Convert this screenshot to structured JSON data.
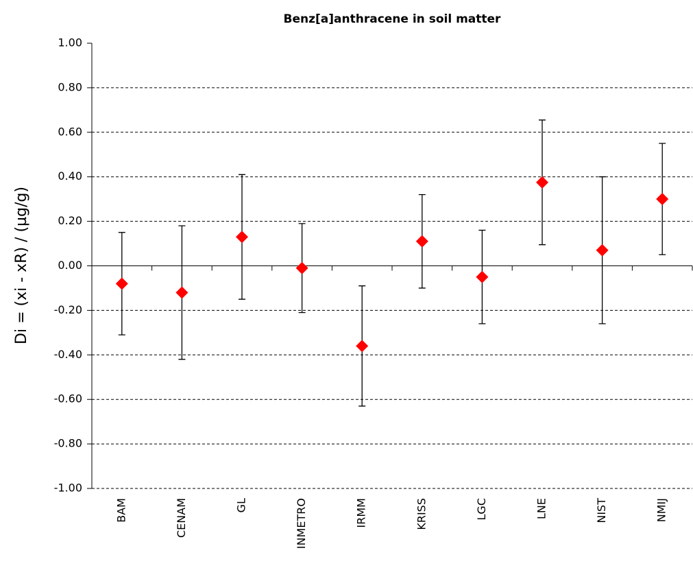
{
  "chart_data": {
    "type": "scatter_errorbar",
    "title": "Benz[a]anthracene in soil matter",
    "y_label": "Di = (xi - xR) / (µg/g)",
    "categories": [
      "BAM",
      "CENAM",
      "GL",
      "INMETRO",
      "IRMM",
      "KRISS",
      "LGC",
      "LNE",
      "NIST",
      "NMIJ"
    ],
    "series": [
      {
        "color": "#ff0000",
        "values": [
          -0.08,
          -0.12,
          0.13,
          -0.01,
          -0.36,
          0.11,
          -0.05,
          0.375,
          0.07,
          0.3
        ],
        "errors": [
          0.23,
          0.3,
          0.28,
          0.2,
          0.27,
          0.21,
          0.21,
          0.28,
          0.33,
          0.25
        ]
      }
    ],
    "ylim": [
      -1,
      1
    ],
    "yticks": [
      {
        "value": -1,
        "label": "-1.00"
      },
      {
        "value": -0.8,
        "label": "-0.80"
      },
      {
        "value": -0.6,
        "label": "-0.60"
      },
      {
        "value": -0.4,
        "label": "-0.40"
      },
      {
        "value": -0.2,
        "label": "-0.20"
      },
      {
        "value": 0,
        "label": "0.00"
      },
      {
        "value": 0.2,
        "label": "0.20"
      },
      {
        "value": 0.4,
        "label": "0.40"
      },
      {
        "value": 0.6,
        "label": "0.60"
      },
      {
        "value": 0.8,
        "label": "0.80"
      },
      {
        "value": 1,
        "label": "1.00"
      }
    ],
    "grid": true
  }
}
